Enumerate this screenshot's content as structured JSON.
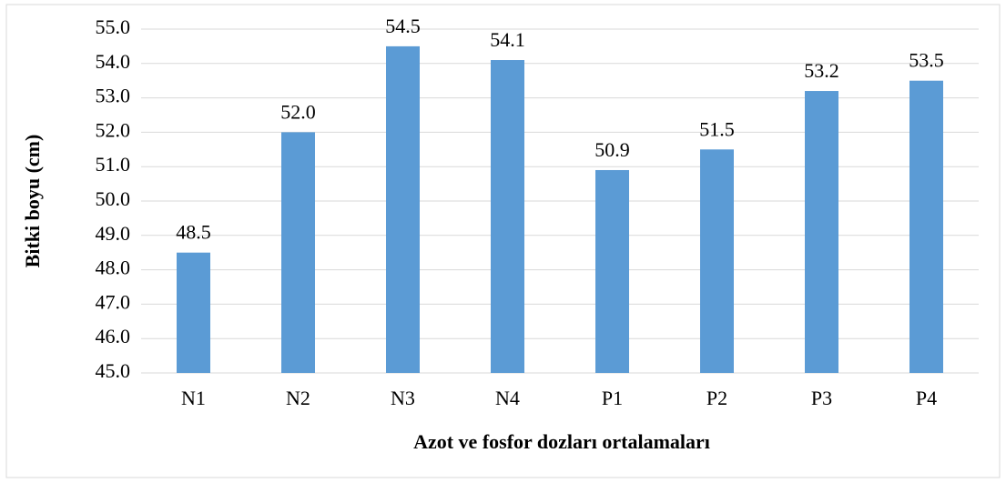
{
  "chart_data": {
    "type": "bar",
    "xlabel": "Azot ve fosfor dozları ortalamaları",
    "ylabel": "Bitki boyu (cm)",
    "categories": [
      "N1",
      "N2",
      "N3",
      "N4",
      "P1",
      "P2",
      "P3",
      "P4"
    ],
    "values": [
      48.5,
      52.0,
      54.5,
      54.1,
      50.9,
      51.5,
      53.2,
      53.5
    ],
    "value_labels": [
      "48.5",
      "52.0",
      "54.5",
      "54.1",
      "50.9",
      "51.5",
      "53.2",
      "53.5"
    ],
    "color": "#5b9bd5",
    "ylim": [
      45,
      55
    ],
    "yticks": [
      {
        "value": 45,
        "label": "45.0"
      },
      {
        "value": 46,
        "label": "46.0"
      },
      {
        "value": 47,
        "label": "47.0"
      },
      {
        "value": 48,
        "label": "48.0"
      },
      {
        "value": 49,
        "label": "49.0"
      },
      {
        "value": 50,
        "label": "50.0"
      },
      {
        "value": 51,
        "label": "51.0"
      },
      {
        "value": 52,
        "label": "52.0"
      },
      {
        "value": 53,
        "label": "53.0"
      },
      {
        "value": 54,
        "label": "54.0"
      },
      {
        "value": 55,
        "label": "55.0"
      }
    ],
    "grid": true
  }
}
